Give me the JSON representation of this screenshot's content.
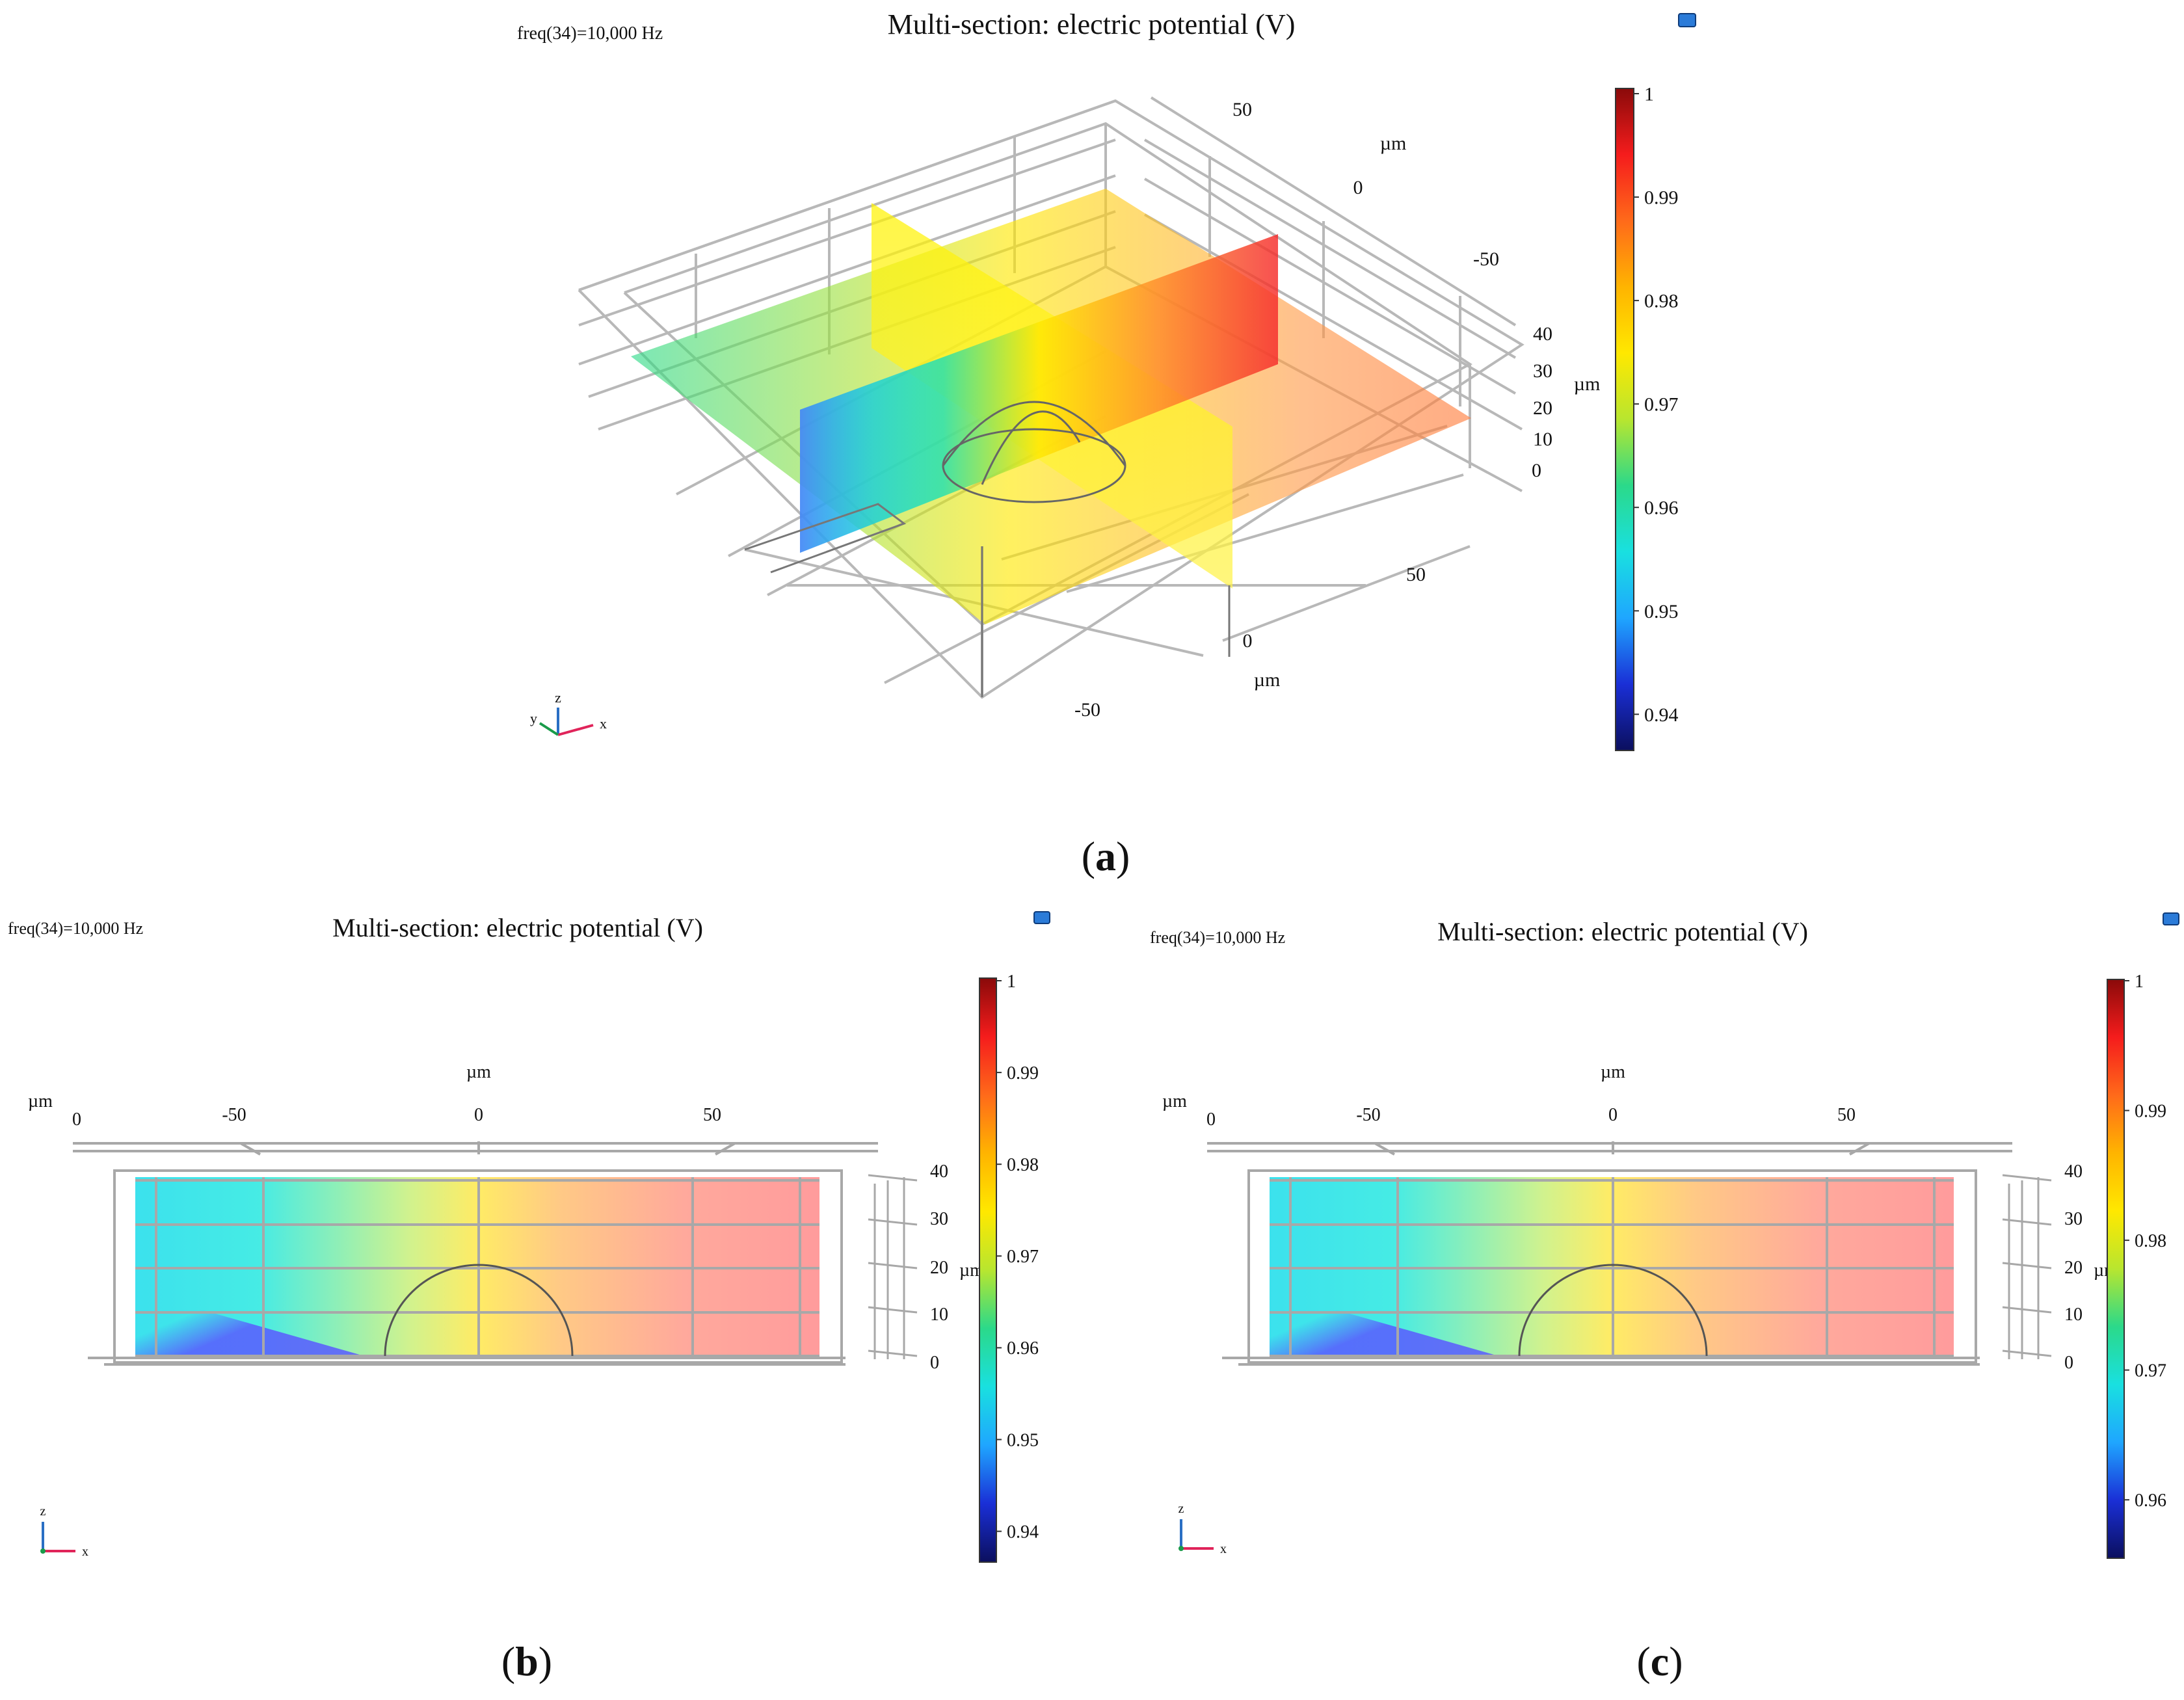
{
  "panels": {
    "a": {
      "label": "(a)",
      "label_letter": "a",
      "freq_text": "freq(34)=10,000 Hz",
      "title": "Multi-section: electric potential (V)"
    },
    "b": {
      "label": "(b)",
      "label_letter": "b",
      "freq_text": "freq(34)=10,000 Hz",
      "title": "Multi-section: electric potential (V)"
    },
    "c": {
      "label": "(c)",
      "label_letter": "c",
      "freq_text": "freq(34)=10,000 Hz",
      "title": "Multi-section: electric potential (V)"
    }
  },
  "colors": {
    "cmap": [
      "#0b0f5e",
      "#1a2fd6",
      "#1fa6ff",
      "#19e0e0",
      "#2bd98a",
      "#b8e62f",
      "#ffe800",
      "#ffb400",
      "#ff6a1a",
      "#f51c1c",
      "#8a0a0a"
    ],
    "grid": "#b8b8b8",
    "edge": "#555555",
    "axis_x": "#e0245a",
    "axis_y": "#1a9b4a",
    "axis_z": "#2a6fc4"
  },
  "chart_data": [
    {
      "id": "a",
      "type": "3d-multi-section",
      "title": "Multi-section: electric potential (V)",
      "annotation": "freq(34)=10,000 Hz",
      "x_axis": {
        "ticks": [
          "-50",
          "0",
          "50"
        ],
        "unit": "µm"
      },
      "y_axis": {
        "ticks": [
          "50",
          "0",
          "-50"
        ],
        "unit": "µm"
      },
      "z_axis": {
        "ticks": [
          "40",
          "30",
          "20",
          "10",
          "0"
        ],
        "unit": "µm"
      },
      "colorbar": {
        "min": 0.9365,
        "max": 1.0,
        "ticks": [
          "1",
          "0.99",
          "0.98",
          "0.97",
          "0.96",
          "0.95",
          "0.94"
        ],
        "tick_values": [
          1.0,
          0.99,
          0.98,
          0.97,
          0.96,
          0.95,
          0.94
        ]
      },
      "triad": {
        "x": "x",
        "y": "y",
        "z": "z"
      }
    },
    {
      "id": "b",
      "type": "section-front-view",
      "title": "Multi-section: electric potential (V)",
      "annotation": "freq(34)=10,000 Hz",
      "x_axis": {
        "ticks": [
          "0",
          "-50",
          "0",
          "50"
        ],
        "unit": "µm"
      },
      "z_axis": {
        "ticks": [
          "40",
          "30",
          "20",
          "10",
          "0"
        ],
        "unit": "µm"
      },
      "unit_label": "µm",
      "colorbar": {
        "min": 0.9365,
        "max": 1.0,
        "ticks": [
          "1",
          "0.99",
          "0.98",
          "0.97",
          "0.96",
          "0.95",
          "0.94"
        ],
        "tick_values": [
          1.0,
          0.99,
          0.98,
          0.97,
          0.96,
          0.95,
          0.94
        ]
      },
      "triad": {
        "x": "x",
        "z": "z"
      }
    },
    {
      "id": "c",
      "type": "section-front-view",
      "title": "Multi-section: electric potential (V)",
      "annotation": "freq(34)=10,000 Hz",
      "x_axis": {
        "ticks": [
          "0",
          "-50",
          "0",
          "50"
        ],
        "unit": "µm"
      },
      "z_axis": {
        "ticks": [
          "40",
          "30",
          "20",
          "10",
          "0"
        ],
        "unit": "µm"
      },
      "unit_label": "µm",
      "colorbar": {
        "min": 0.9555,
        "max": 1.0,
        "ticks": [
          "1",
          "0.99",
          "0.98",
          "0.97",
          "0.96"
        ],
        "tick_values": [
          1.0,
          0.99,
          0.98,
          0.97,
          0.96
        ]
      },
      "triad": {
        "x": "x",
        "z": "z"
      }
    }
  ]
}
